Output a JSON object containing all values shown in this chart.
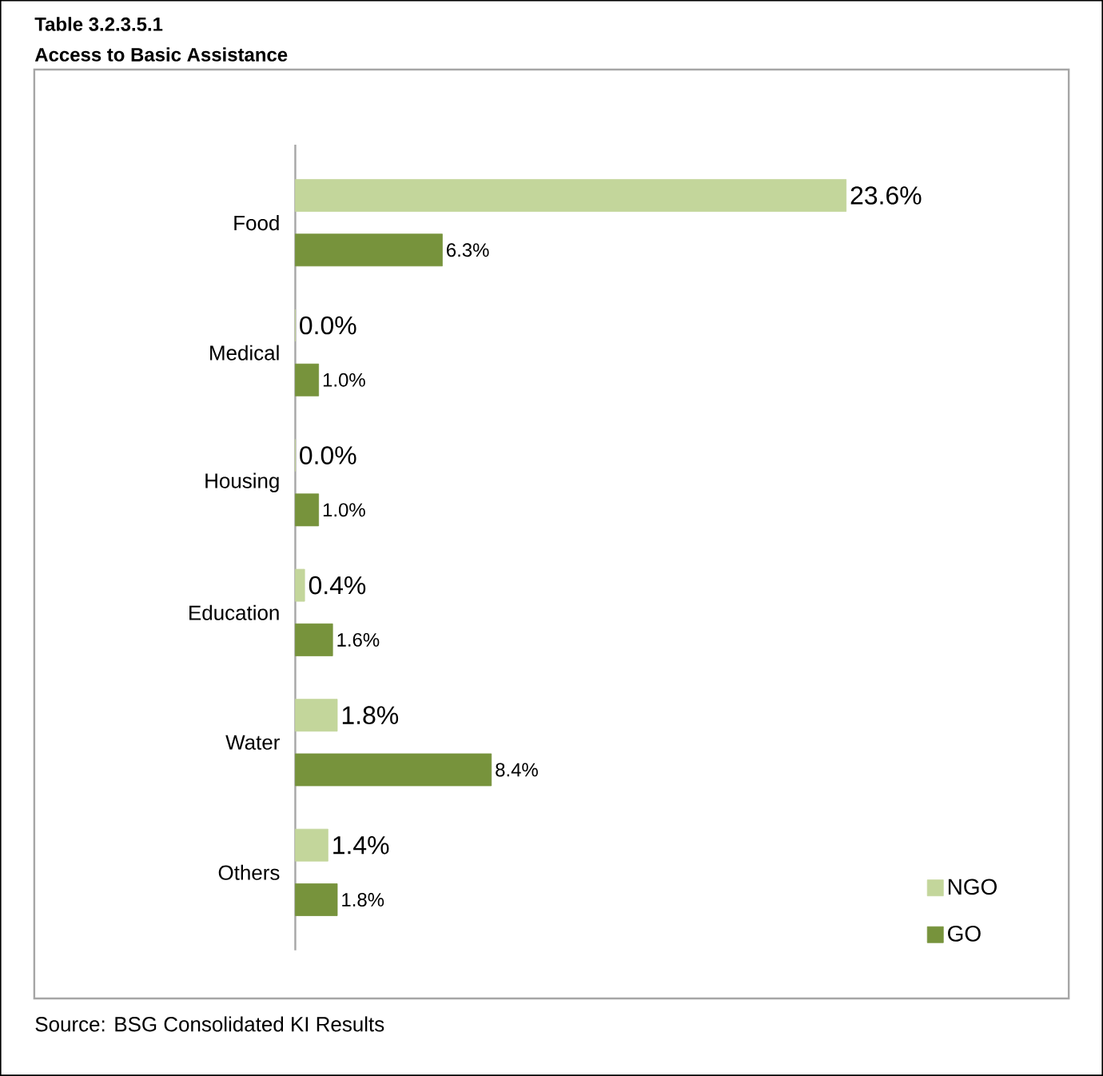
{
  "chart_data": {
    "type": "bar",
    "orientation": "horizontal",
    "title": "Table 3.2.3.5.1",
    "subtitle": "Access to Basic Assistance",
    "categories": [
      "Food",
      "Medical",
      "Housing",
      "Education",
      "Water",
      "Others"
    ],
    "series": [
      {
        "name": "NGO",
        "color": "#c3d69b",
        "values": [
          23.6,
          0.0,
          0.0,
          0.4,
          1.8,
          1.4
        ],
        "value_labels": [
          "23.6%",
          "0.0%",
          "0.0%",
          "0.4%",
          "1.8%",
          "1.4%"
        ]
      },
      {
        "name": "GO",
        "color": "#77933c",
        "values": [
          6.3,
          1.0,
          1.0,
          1.6,
          8.4,
          1.8
        ],
        "value_labels": [
          "6.3%",
          "1.0%",
          "1.0%",
          "1.6%",
          "8.4%",
          "1.8%"
        ]
      }
    ],
    "legend": "bottom right",
    "annotations": [
      "Source: BSG Consolidated KI Results"
    ]
  }
}
